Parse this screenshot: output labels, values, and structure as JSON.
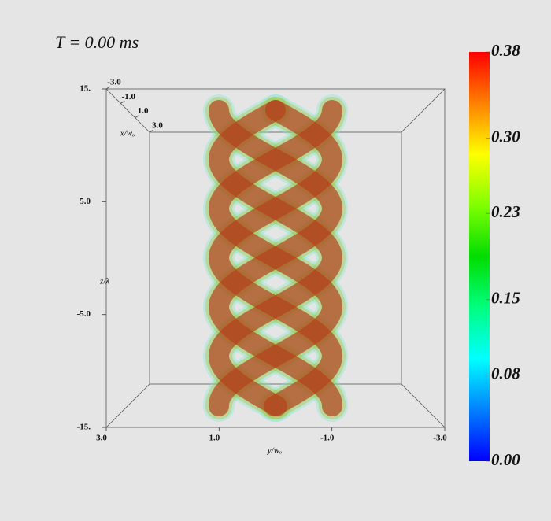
{
  "chart_data": {
    "type": "volume",
    "title": "T = 0.00 ms",
    "zlabel": "z/λ",
    "ylabel": "y/wₒ",
    "xlabel": "x/wₒ",
    "zlim": [
      -15,
      15
    ],
    "zticks": [
      {
        "value": 15,
        "label": "15."
      },
      {
        "value": 5,
        "label": "5.0"
      },
      {
        "value": -5,
        "label": "-5.0"
      },
      {
        "value": -15,
        "label": "-15."
      }
    ],
    "ylim": [
      3,
      -3
    ],
    "yticks": [
      {
        "value": 3,
        "label": "3.0"
      },
      {
        "value": 1,
        "label": "1.0"
      },
      {
        "value": -1,
        "label": "-1.0"
      },
      {
        "value": -3,
        "label": "-3.0"
      }
    ],
    "xlim": [
      -3,
      3
    ],
    "xticks": [
      {
        "value": -3,
        "label": "-3.0"
      },
      {
        "value": -1,
        "label": "-1.0"
      },
      {
        "value": 1,
        "label": "1.0"
      },
      {
        "value": 3,
        "label": "3.0"
      }
    ],
    "clim": [
      0,
      0.38
    ],
    "cticks": [
      {
        "value": 0,
        "label": "0.00"
      },
      0.08,
      0.15,
      0.23,
      {
        "value": 0.3,
        "label": "0.30"
      },
      0.38
    ],
    "colormap": [
      "#0000ff",
      "#0080ff",
      "#00ffff",
      "#00ff80",
      "#00dd00",
      "#80ff00",
      "#ffff00",
      "#ff8000",
      "#ff0000"
    ]
  }
}
